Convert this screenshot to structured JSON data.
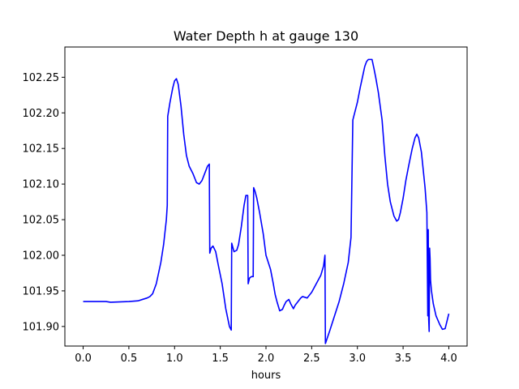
{
  "chart_data": {
    "type": "line",
    "title": "Water Depth h at gauge 130",
    "xlabel": "hours",
    "ylabel": "",
    "xlim": [
      -0.2,
      4.2
    ],
    "ylim": [
      101.8725,
      102.2925
    ],
    "grid": false,
    "legend": "none",
    "line_color": "#0000ff",
    "x_ticks": [
      {
        "value": 0.0,
        "label": "0.0"
      },
      {
        "value": 0.5,
        "label": "0.5"
      },
      {
        "value": 1.0,
        "label": "1.0"
      },
      {
        "value": 1.5,
        "label": "1.5"
      },
      {
        "value": 2.0,
        "label": "2.0"
      },
      {
        "value": 2.5,
        "label": "2.5"
      },
      {
        "value": 3.0,
        "label": "3.0"
      },
      {
        "value": 3.5,
        "label": "3.5"
      },
      {
        "value": 4.0,
        "label": "4.0"
      }
    ],
    "y_ticks": [
      {
        "value": 101.9,
        "label": "101.90"
      },
      {
        "value": 101.95,
        "label": "101.95"
      },
      {
        "value": 102.0,
        "label": "102.00"
      },
      {
        "value": 102.05,
        "label": "102.05"
      },
      {
        "value": 102.1,
        "label": "102.10"
      },
      {
        "value": 102.15,
        "label": "102.15"
      },
      {
        "value": 102.2,
        "label": "102.20"
      },
      {
        "value": 102.25,
        "label": "102.25"
      }
    ],
    "series": [
      {
        "x": [
          0.0,
          0.2,
          0.25,
          0.3,
          0.5,
          0.6,
          0.65,
          0.7,
          0.73,
          0.76,
          0.8,
          0.85,
          0.88,
          0.91,
          0.92,
          0.925,
          0.95,
          0.98,
          1.0,
          1.02,
          1.04,
          1.07,
          1.1,
          1.13,
          1.16,
          1.2,
          1.24,
          1.27,
          1.3,
          1.33,
          1.36,
          1.38,
          1.385,
          1.4,
          1.42,
          1.45,
          1.48,
          1.52,
          1.56,
          1.6,
          1.62,
          1.625,
          1.65,
          1.68,
          1.7,
          1.73,
          1.76,
          1.78,
          1.8,
          1.805,
          1.82,
          1.84,
          1.86,
          1.865,
          1.88,
          1.9,
          1.93,
          1.97,
          2.0,
          2.05,
          2.08,
          2.1,
          2.12,
          2.15,
          2.18,
          2.2,
          2.22,
          2.25,
          2.27,
          2.3,
          2.32,
          2.35,
          2.38,
          2.4,
          2.45,
          2.5,
          2.55,
          2.6,
          2.63,
          2.645,
          2.65,
          2.7,
          2.75,
          2.8,
          2.85,
          2.9,
          2.93,
          2.935,
          2.95,
          2.97,
          3.0,
          3.03,
          3.06,
          3.08,
          3.1,
          3.12,
          3.14,
          3.16,
          3.18,
          3.2,
          3.23,
          3.27,
          3.3,
          3.33,
          3.36,
          3.4,
          3.43,
          3.45,
          3.47,
          3.5,
          3.53,
          3.56,
          3.6,
          3.63,
          3.65,
          3.67,
          3.7,
          3.72,
          3.74,
          3.76,
          3.77,
          3.775,
          3.78,
          3.785,
          3.79,
          3.795,
          3.8,
          3.81,
          3.83,
          3.86,
          3.9,
          3.93,
          3.96,
          4.0
        ],
        "y": [
          101.935,
          101.935,
          101.935,
          101.934,
          101.935,
          101.936,
          101.938,
          101.94,
          101.942,
          101.946,
          101.96,
          101.99,
          102.015,
          102.05,
          102.07,
          102.195,
          102.215,
          102.235,
          102.245,
          102.248,
          102.24,
          102.21,
          102.17,
          102.14,
          102.125,
          102.115,
          102.102,
          102.1,
          102.105,
          102.115,
          102.125,
          102.128,
          102.003,
          102.01,
          102.013,
          102.005,
          101.985,
          101.96,
          101.925,
          101.9,
          101.895,
          102.017,
          102.005,
          102.007,
          102.015,
          102.04,
          102.07,
          102.084,
          102.084,
          101.96,
          101.968,
          101.97,
          101.97,
          102.095,
          102.09,
          102.08,
          102.06,
          102.03,
          102.0,
          101.98,
          101.96,
          101.945,
          101.935,
          101.922,
          101.924,
          101.93,
          101.935,
          101.938,
          101.932,
          101.925,
          101.93,
          101.935,
          101.94,
          101.942,
          101.94,
          101.948,
          101.96,
          101.972,
          101.985,
          102.0,
          101.876,
          101.895,
          101.915,
          101.935,
          101.96,
          101.99,
          102.025,
          102.065,
          102.19,
          102.2,
          102.215,
          102.235,
          102.253,
          102.265,
          102.272,
          102.275,
          102.275,
          102.275,
          102.263,
          102.25,
          102.228,
          102.19,
          102.14,
          102.1,
          102.075,
          102.055,
          102.048,
          102.05,
          102.06,
          102.08,
          102.105,
          102.125,
          102.15,
          102.165,
          102.17,
          102.165,
          102.145,
          102.12,
          102.095,
          102.06,
          101.915,
          102.036,
          101.91,
          101.893,
          102.01,
          101.995,
          101.965,
          101.95,
          101.932,
          101.915,
          101.903,
          101.896,
          101.897,
          101.918
        ]
      }
    ]
  }
}
